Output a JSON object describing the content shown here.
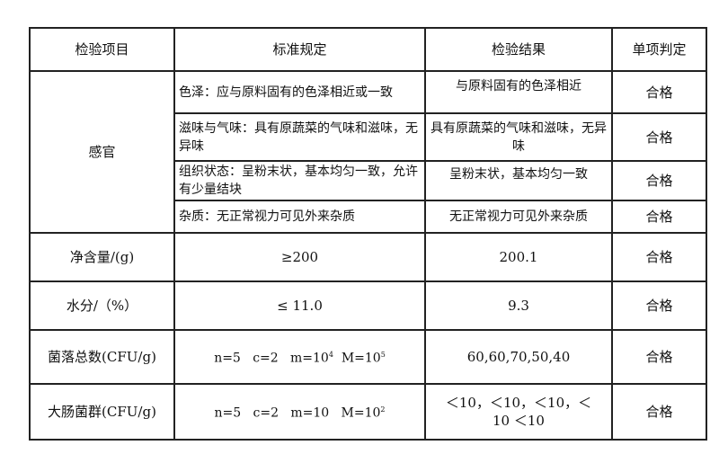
{
  "headers": [
    "检验项目",
    "标准规定",
    "检验结果",
    "单项判定"
  ],
  "sensory": {
    "item": "感官",
    "rows": [
      {
        "standard": "色泽：应与原料固有的色泽相近或一致",
        "result": "与原料固有的色泽相近",
        "verdict": "合格"
      },
      {
        "standard": "滋味与气味：具有原蔬菜的气味和滋味，无异味",
        "result": "具有原蔬菜的气味和滋味，无异味",
        "verdict": "合格"
      },
      {
        "standard": "组织状态：呈粉末状，基本均匀一致，允许有少量结块",
        "result": "呈粉末状，基本均匀一致",
        "verdict": "合格"
      },
      {
        "standard": "杂质：无正常视力可见外来杂质",
        "result": "无正常视力可见外来杂质",
        "verdict": "合格"
      }
    ]
  },
  "net": {
    "item": "净含量/(g)",
    "standard": "≥200",
    "result": "200.1",
    "verdict": "合格"
  },
  "water": {
    "item": "水分/（%）",
    "standard": "≤ 11.0",
    "result": "9.3",
    "verdict": "合格"
  },
  "colony": {
    "item": "菌落总数(CFU/g)",
    "std_a": "n=5   c=2   m=10",
    "std_a_exp": "4",
    "std_b": "  M=10",
    "std_b_exp": "5",
    "result": "60,60,70,50,40",
    "verdict": "合格"
  },
  "coliform": {
    "item": "大肠菌群(CFU/g)",
    "std_a": "n=5   c=2   m=10   M=10",
    "std_a_exp": "2",
    "result": "＜10，＜10，＜10，＜10 ＜10",
    "verdict": "合格"
  }
}
